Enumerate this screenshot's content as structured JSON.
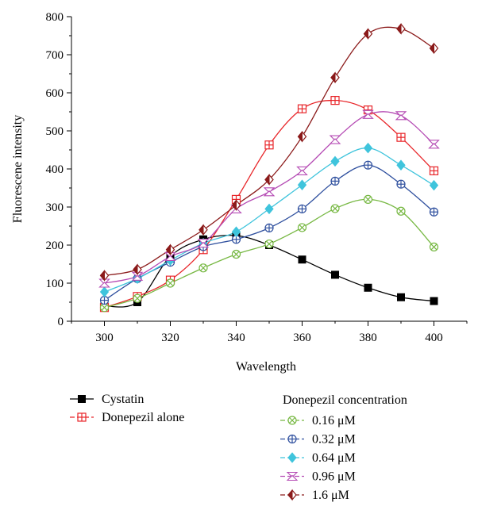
{
  "chart_data": {
    "type": "line",
    "xlabel": "Wavelength",
    "ylabel": "Fluorescene intensity",
    "xlim": [
      290,
      410
    ],
    "ylim": [
      0,
      800
    ],
    "x_ticks": [
      "300",
      "320",
      "340",
      "360",
      "380",
      "400"
    ],
    "y_ticks": [
      "0",
      "100",
      "200",
      "300",
      "400",
      "500",
      "600",
      "700",
      "800"
    ],
    "x": [
      300,
      310,
      320,
      330,
      340,
      350,
      360,
      370,
      380,
      390,
      400
    ],
    "legend_group_title": "Donepezil concentration",
    "series": [
      {
        "name": "Cystatin",
        "color": "#000000",
        "marker": "square-filled",
        "values": [
          40,
          50,
          170,
          215,
          225,
          200,
          162,
          122,
          88,
          63,
          53
        ]
      },
      {
        "name": "Donepezil alone",
        "color": "#e8262a",
        "marker": "square-plus",
        "values": [
          36,
          65,
          108,
          188,
          320,
          463,
          558,
          580,
          555,
          483,
          395
        ]
      },
      {
        "name": "0.16 μM",
        "color": "#77b843",
        "marker": "circle-x",
        "values": [
          36,
          60,
          100,
          140,
          176,
          203,
          246,
          296,
          320,
          289,
          195
        ]
      },
      {
        "name": "0.32 μM",
        "color": "#2e4f9e",
        "marker": "circle-plus",
        "values": [
          55,
          112,
          155,
          196,
          215,
          245,
          295,
          368,
          410,
          360,
          287
        ]
      },
      {
        "name": "0.64 μM",
        "color": "#3fc4dc",
        "marker": "diamond-filled",
        "values": [
          77,
          112,
          160,
          205,
          235,
          295,
          358,
          420,
          455,
          410,
          357
        ]
      },
      {
        "name": "0.96 μM",
        "color": "#b54bb4",
        "marker": "triangle-x",
        "values": [
          100,
          118,
          170,
          205,
          295,
          340,
          395,
          477,
          543,
          540,
          465
        ]
      },
      {
        "name": "1.6 μM",
        "color": "#8b1a1a",
        "marker": "diamond-half",
        "values": [
          120,
          136,
          188,
          240,
          305,
          372,
          485,
          640,
          755,
          768,
          717
        ]
      }
    ]
  }
}
